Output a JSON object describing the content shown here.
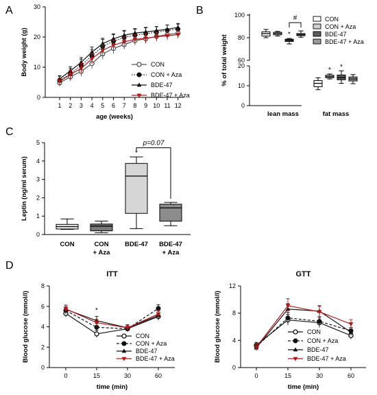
{
  "chart_data": [
    {
      "panel": "A",
      "type": "line",
      "ylabel": "Body weight (g)",
      "xlabel": "age (weeks)",
      "ylim": [
        0,
        30
      ],
      "yticks": [
        0,
        10,
        20,
        30
      ],
      "x": [
        1,
        2,
        3,
        4,
        5,
        6,
        7,
        8,
        9,
        10,
        11,
        12
      ],
      "series": [
        {
          "name": "CON",
          "color": "#555555",
          "marker": "open-circle",
          "dash": "solid",
          "values": [
            4.8,
            6.8,
            8.6,
            11.2,
            14.4,
            16.2,
            17.5,
            18.8,
            19.4,
            20.2,
            20.8,
            21.3
          ]
        },
        {
          "name": "CON + Aza",
          "color": "#111111",
          "marker": "filled-circle",
          "dash": "dotted",
          "values": [
            5.6,
            7.8,
            10.6,
            13.7,
            16.9,
            18.6,
            19.9,
            20.6,
            21.1,
            21.6,
            22.2,
            22.6
          ]
        },
        {
          "name": "BDE-47",
          "color": "#111111",
          "marker": "triangle",
          "dash": "solid",
          "values": [
            6.1,
            8.8,
            11.6,
            15.0,
            17.8,
            19.4,
            20.6,
            21.3,
            21.7,
            22.1,
            22.6,
            23.2
          ]
        },
        {
          "name": "BDE-47 + Aza",
          "color": "#b01818",
          "marker": "triangle-down",
          "dash": "solid",
          "values": [
            5.3,
            7.6,
            9.6,
            12.8,
            15.6,
            17.3,
            18.4,
            19.2,
            19.6,
            20.1,
            20.4,
            20.8
          ]
        }
      ]
    },
    {
      "panel": "B",
      "type": "box",
      "ylabel": "% of total weight",
      "categories": [
        "lean mass",
        "fat mass"
      ],
      "yticks_upper": [
        60,
        80,
        100
      ],
      "yticks_lower": [
        0,
        10,
        20
      ],
      "legend": [
        "CON",
        "CON + Aza",
        "BDE-47",
        "BDE-47 + Aza"
      ],
      "annotations": [
        "#",
        "*",
        "*",
        "*"
      ],
      "boxes": [
        {
          "group": "lean mass",
          "series": "CON",
          "min": 80.0,
          "q1": 81.5,
          "median": 83.6,
          "q3": 85.2,
          "max": 87.3
        },
        {
          "group": "lean mass",
          "series": "CON + Aza",
          "min": 81.5,
          "q1": 82.6,
          "median": 83.8,
          "q3": 84.8,
          "max": 85.6
        },
        {
          "group": "lean mass",
          "series": "BDE-47",
          "min": 74.5,
          "q1": 76.7,
          "median": 77.8,
          "q3": 78.7,
          "max": 79.3
        },
        {
          "group": "lean mass",
          "series": "BDE-47 + Aza",
          "min": 80.4,
          "q1": 81.8,
          "median": 82.7,
          "q3": 83.7,
          "max": 86.0
        },
        {
          "group": "fat mass",
          "series": "CON",
          "min": 8.0,
          "q1": 9.5,
          "median": 11.2,
          "q3": 12.6,
          "max": 14.0
        },
        {
          "group": "fat mass",
          "series": "CON + Aza",
          "min": 13.4,
          "q1": 14.0,
          "median": 14.6,
          "q3": 15.3,
          "max": 15.9
        },
        {
          "group": "fat mass",
          "series": "BDE-47",
          "min": 11.2,
          "q1": 13.0,
          "median": 14.1,
          "q3": 15.4,
          "max": 17.5
        },
        {
          "group": "fat mass",
          "series": "BDE-47 + Aza",
          "min": 11.0,
          "q1": 12.4,
          "median": 13.4,
          "q3": 14.4,
          "max": 15.6
        }
      ]
    },
    {
      "panel": "C",
      "type": "box",
      "ylabel": "Leptin (ng/ml serum)",
      "ylim": [
        0,
        5
      ],
      "yticks": [
        0,
        1,
        2,
        3,
        4,
        5
      ],
      "categories": [
        "CON",
        "CON\n+ Aza",
        "BDE-47",
        "BDE-47\n+ Aza"
      ],
      "annotations": [
        "*",
        "p=0.07"
      ],
      "boxes": [
        {
          "series": "CON",
          "min": 0.28,
          "q1": 0.3,
          "median": 0.43,
          "q3": 0.55,
          "max": 0.85
        },
        {
          "series": "CON + Aza",
          "min": 0.1,
          "q1": 0.2,
          "median": 0.46,
          "q3": 0.57,
          "max": 0.73
        },
        {
          "series": "BDE-47",
          "min": 0.32,
          "q1": 1.15,
          "median": 3.18,
          "q3": 3.87,
          "max": 4.22
        },
        {
          "series": "BDE-47 + Aza",
          "min": 0.48,
          "q1": 0.73,
          "median": 1.45,
          "q3": 1.65,
          "max": 1.75
        }
      ]
    },
    {
      "panel": "D",
      "title": "ITT",
      "type": "line",
      "ylabel": "Blood glucose (mmol/l)",
      "xlabel": "time (min)",
      "ylim": [
        0,
        8
      ],
      "yticks": [
        0,
        2,
        4,
        6,
        8
      ],
      "x": [
        0,
        15,
        30,
        60
      ],
      "annotations": [
        "*"
      ],
      "series": [
        {
          "name": "CON",
          "marker": "open-circle",
          "dash": "solid",
          "color": "#111111",
          "values": [
            5.3,
            3.3,
            3.8,
            5.0
          ]
        },
        {
          "name": "CON + Aza",
          "marker": "filled-circle",
          "dash": "dashed",
          "color": "#111111",
          "values": [
            5.6,
            3.95,
            3.8,
            5.8
          ]
        },
        {
          "name": "BDE-47",
          "marker": "triangle",
          "dash": "solid",
          "color": "#111111",
          "values": [
            5.7,
            4.6,
            3.9,
            5.1
          ]
        },
        {
          "name": "BDE-47 + Aza",
          "marker": "triangle-down",
          "dash": "solid",
          "color": "#b01818",
          "values": [
            5.75,
            4.4,
            3.9,
            5.25
          ]
        }
      ]
    },
    {
      "panel": "D",
      "title": "GTT",
      "type": "line",
      "ylabel": "Blood glucose (mmol/l)",
      "xlabel": "time (min)",
      "ylim": [
        0,
        12
      ],
      "yticks": [
        0,
        4,
        8,
        12
      ],
      "x": [
        0,
        15,
        30,
        60
      ],
      "series": [
        {
          "name": "CON",
          "marker": "open-circle",
          "dash": "solid",
          "color": "#111111",
          "values": [
            3.3,
            7.0,
            6.6,
            4.7
          ]
        },
        {
          "name": "CON + Aza",
          "marker": "filled-circle",
          "dash": "dashed",
          "color": "#111111",
          "values": [
            3.1,
            7.3,
            6.8,
            5.4
          ]
        },
        {
          "name": "BDE-47",
          "marker": "triangle",
          "dash": "solid",
          "color": "#111111",
          "values": [
            2.9,
            8.6,
            8.3,
            5.2
          ]
        },
        {
          "name": "BDE-47 + Aza",
          "marker": "triangle-down",
          "dash": "solid",
          "color": "#b01818",
          "values": [
            3.0,
            9.1,
            8.2,
            6.4
          ]
        }
      ]
    }
  ]
}
